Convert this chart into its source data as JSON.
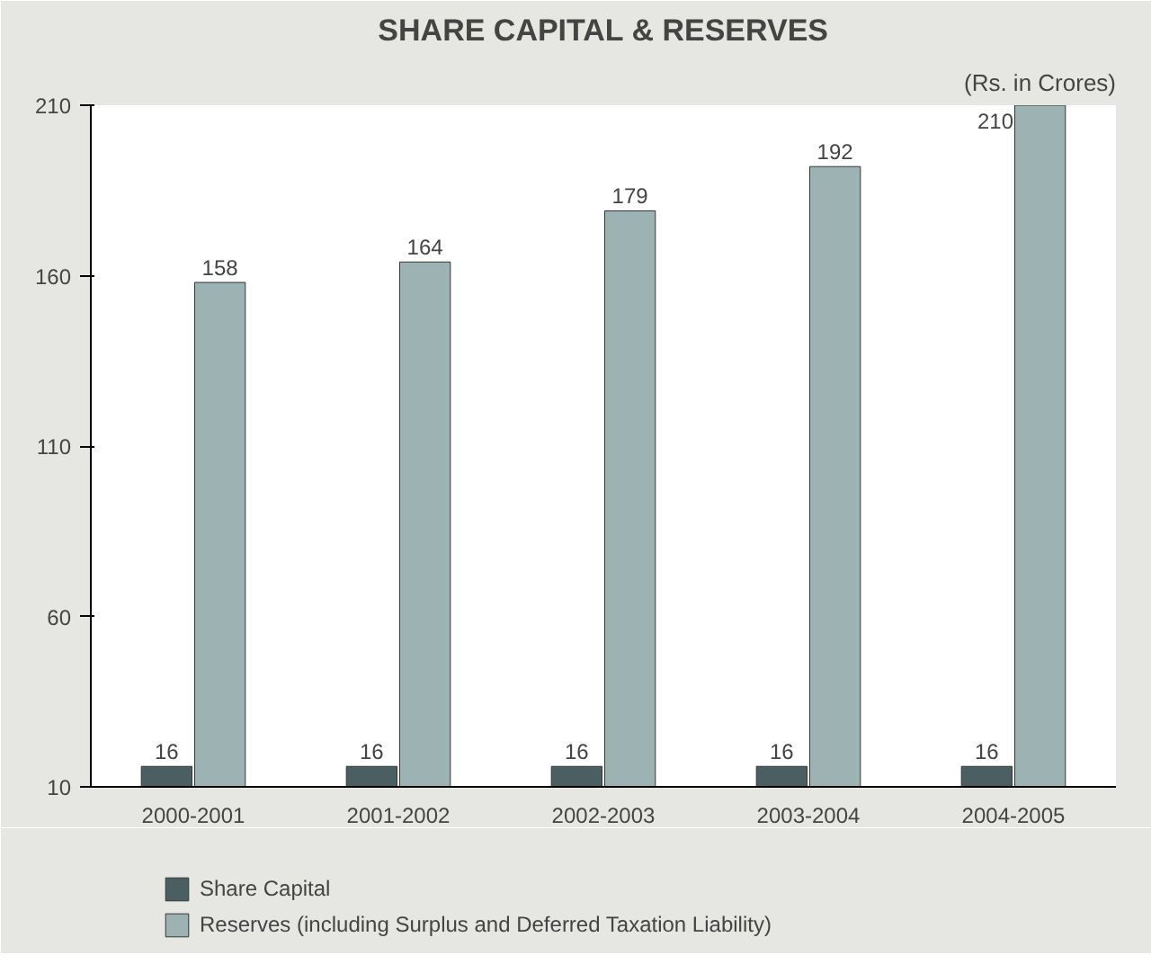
{
  "chart_data": {
    "type": "bar",
    "title": "SHARE CAPITAL & RESERVES",
    "annotations": [
      "(Rs. in Crores)"
    ],
    "categories": [
      "2000-2001",
      "2001-2002",
      "2002-2003",
      "2003-2004",
      "2004-2005"
    ],
    "series": [
      {
        "name": "Share Capital",
        "color": "#4b5f63",
        "values": [
          16,
          16,
          16,
          16,
          16
        ]
      },
      {
        "name": "Reserves (including Surplus and Deferred Taxation Liability)",
        "color": "#9db3b3",
        "values": [
          158,
          164,
          179,
          192,
          210
        ]
      }
    ],
    "ylim": [
      10,
      210
    ],
    "yticks": [
      10,
      60,
      110,
      160,
      210
    ],
    "grid": false,
    "legend": "bottom",
    "data_labels": true
  }
}
